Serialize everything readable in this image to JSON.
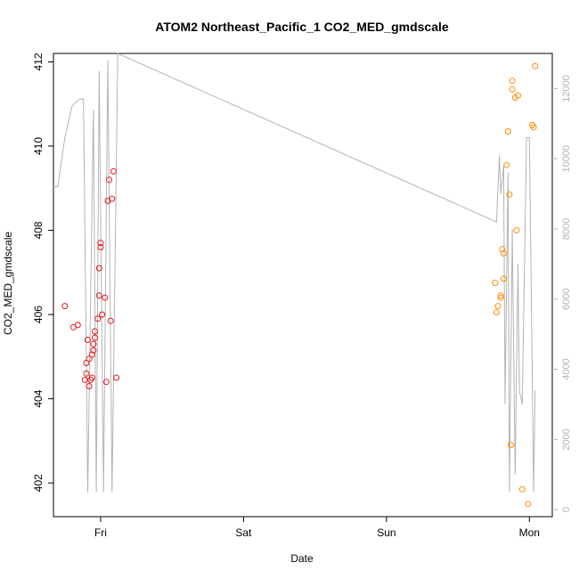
{
  "chart_data": {
    "type": "scatter",
    "title": "ATOM2 Northeast_Pacific_1 CO2_MED_gmdscale",
    "xlabel": "Date",
    "ylabel": "CO2_MED_gmdscale",
    "x_ticks": [
      {
        "label": "Fri",
        "day": 1
      },
      {
        "label": "Sat",
        "day": 2
      },
      {
        "label": "Sun",
        "day": 3
      },
      {
        "label": "Mon",
        "day": 4
      }
    ],
    "xlim_days": [
      0.67,
      4.16
    ],
    "ylim": [
      401.2,
      412.2
    ],
    "y_ticks": [
      402,
      404,
      406,
      408,
      410,
      412
    ],
    "y2lim": [
      -200,
      13000
    ],
    "y2_ticks": [
      0,
      2000,
      4000,
      6000,
      8000,
      10000,
      12000
    ],
    "colors": {
      "series_a": "#e31a1c",
      "series_b": "#ff8c00",
      "altitude_line": "#b3b3b3",
      "axis": "#000000",
      "axis_right": "#b3b3b3"
    },
    "series": [
      {
        "color_key": "series_a",
        "points": [
          [
            0.75,
            406.2
          ],
          [
            0.81,
            405.7
          ],
          [
            0.84,
            405.75
          ],
          [
            0.89,
            404.45
          ],
          [
            0.9,
            404.6
          ],
          [
            0.9,
            404.85
          ],
          [
            0.91,
            405.4
          ],
          [
            0.92,
            404.3
          ],
          [
            0.92,
            404.95
          ],
          [
            0.93,
            404.45
          ],
          [
            0.94,
            404.5
          ],
          [
            0.94,
            405.05
          ],
          [
            0.95,
            405.3
          ],
          [
            0.95,
            405.15
          ],
          [
            0.96,
            405.6
          ],
          [
            0.96,
            405.45
          ],
          [
            0.98,
            405.9
          ],
          [
            0.99,
            406.45
          ],
          [
            0.99,
            407.1
          ],
          [
            1.0,
            407.6
          ],
          [
            1.0,
            407.7
          ],
          [
            1.01,
            406.0
          ],
          [
            1.03,
            406.4
          ],
          [
            1.04,
            404.4
          ],
          [
            1.05,
            408.7
          ],
          [
            1.06,
            409.2
          ],
          [
            1.07,
            405.85
          ],
          [
            1.08,
            408.75
          ],
          [
            1.09,
            409.4
          ],
          [
            1.11,
            404.5
          ]
        ]
      },
      {
        "color_key": "series_b",
        "points": [
          [
            3.76,
            406.75
          ],
          [
            3.77,
            406.05
          ],
          [
            3.78,
            406.2
          ],
          [
            3.8,
            406.4
          ],
          [
            3.8,
            406.45
          ],
          [
            3.81,
            407.55
          ],
          [
            3.82,
            407.45
          ],
          [
            3.82,
            406.85
          ],
          [
            3.84,
            409.55
          ],
          [
            3.85,
            410.35
          ],
          [
            3.86,
            408.85
          ],
          [
            3.87,
            402.9
          ],
          [
            3.88,
            411.55
          ],
          [
            3.88,
            411.35
          ],
          [
            3.9,
            411.15
          ],
          [
            3.91,
            408.0
          ],
          [
            3.92,
            411.2
          ],
          [
            3.95,
            401.85
          ],
          [
            3.99,
            401.5
          ],
          [
            4.02,
            410.5
          ],
          [
            4.03,
            410.45
          ],
          [
            4.04,
            411.9
          ]
        ]
      }
    ],
    "altitude_line": [
      [
        0.67,
        9200
      ],
      [
        0.7,
        9200
      ],
      [
        0.75,
        10600
      ],
      [
        0.8,
        11500
      ],
      [
        0.85,
        11700
      ],
      [
        0.88,
        11700
      ],
      [
        0.91,
        500
      ],
      [
        0.95,
        11400
      ],
      [
        0.97,
        500
      ],
      [
        0.99,
        12500
      ],
      [
        1.02,
        500
      ],
      [
        1.05,
        12800
      ],
      [
        1.08,
        500
      ],
      [
        1.12,
        13000
      ],
      [
        3.77,
        8200
      ],
      [
        3.79,
        10100
      ],
      [
        3.8,
        9000
      ],
      [
        3.82,
        9800
      ],
      [
        3.83,
        3000
      ],
      [
        3.85,
        9600
      ],
      [
        3.86,
        500
      ],
      [
        3.88,
        8000
      ],
      [
        3.9,
        1000
      ],
      [
        3.92,
        7000
      ],
      [
        3.93,
        3400
      ],
      [
        3.95,
        3000
      ],
      [
        3.98,
        10600
      ],
      [
        4.0,
        10600
      ],
      [
        4.03,
        500
      ],
      [
        4.04,
        3400
      ]
    ]
  }
}
